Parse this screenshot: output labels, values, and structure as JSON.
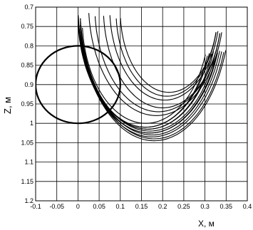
{
  "chart_data": {
    "type": "line",
    "title": "",
    "xlabel": "X, м",
    "ylabel": "Z, м",
    "xlim": [
      -0.1,
      0.4
    ],
    "ylim": [
      0.7,
      1.2
    ],
    "y_inverted": true,
    "grid": true,
    "x_ticks": [
      "-0.1",
      "-0.05",
      "0",
      "0.05",
      "0.1",
      "0.15",
      "0.2",
      "0.25",
      "0.3",
      "0.35",
      "0.4"
    ],
    "y_ticks": [
      "0.7",
      "0.75",
      "0.8",
      "0.85",
      "0.9",
      "0.95",
      "1",
      "1.05",
      "1.1",
      "1.15",
      "1.2"
    ],
    "series": [
      {
        "kind": "circle",
        "center": [
          0.0,
          0.9
        ],
        "radius_x": 0.1,
        "radius_z": 0.1,
        "color": "#000000"
      },
      {
        "kind": "trajectory-bundle",
        "color": "#000000",
        "curves": [
          {
            "center": [
              0.16,
              0.73
            ],
            "radius_x": 0.15,
            "radius_z": 0.27,
            "from_deg": 200,
            "to_deg": 355
          },
          {
            "center": [
              0.16,
              0.73
            ],
            "radius_x": 0.155,
            "radius_z": 0.28,
            "from_deg": 200,
            "to_deg": 355
          },
          {
            "center": [
              0.16,
              0.72
            ],
            "radius_x": 0.16,
            "radius_z": 0.29,
            "from_deg": 200,
            "to_deg": 355
          },
          {
            "center": [
              0.165,
              0.72
            ],
            "radius_x": 0.16,
            "radius_z": 0.295,
            "from_deg": 200,
            "to_deg": 355
          },
          {
            "center": [
              0.165,
              0.71
            ],
            "radius_x": 0.165,
            "radius_z": 0.305,
            "from_deg": 200,
            "to_deg": 355
          },
          {
            "center": [
              0.17,
              0.71
            ],
            "radius_x": 0.165,
            "radius_z": 0.31,
            "from_deg": 200,
            "to_deg": 355
          },
          {
            "center": [
              0.17,
              0.71
            ],
            "radius_x": 0.17,
            "radius_z": 0.315,
            "from_deg": 200,
            "to_deg": 355
          },
          {
            "center": [
              0.17,
              0.7
            ],
            "radius_x": 0.17,
            "radius_z": 0.325,
            "from_deg": 200,
            "to_deg": 355
          },
          {
            "center": [
              0.175,
              0.7
            ],
            "radius_x": 0.17,
            "radius_z": 0.33,
            "from_deg": 200,
            "to_deg": 355
          },
          {
            "center": [
              0.175,
              0.7
            ],
            "radius_x": 0.175,
            "radius_z": 0.335,
            "from_deg": 200,
            "to_deg": 355
          },
          {
            "center": [
              0.18,
              0.7
            ],
            "radius_x": 0.175,
            "radius_z": 0.34,
            "from_deg": 200,
            "to_deg": 355
          },
          {
            "center": [
              0.18,
              0.69
            ],
            "radius_x": 0.18,
            "radius_z": 0.355,
            "from_deg": 200,
            "to_deg": 355
          },
          {
            "center": [
              0.185,
              0.69
            ],
            "radius_x": 0.16,
            "radius_z": 0.29,
            "from_deg": 195,
            "to_deg": 355
          },
          {
            "center": [
              0.19,
              0.7
            ],
            "radius_x": 0.15,
            "radius_z": 0.27,
            "from_deg": 195,
            "to_deg": 355
          },
          {
            "center": [
              0.2,
              0.7
            ],
            "radius_x": 0.14,
            "radius_z": 0.26,
            "from_deg": 195,
            "to_deg": 355
          },
          {
            "center": [
              0.205,
              0.7
            ],
            "radius_x": 0.13,
            "radius_z": 0.24,
            "from_deg": 195,
            "to_deg": 355
          },
          {
            "center": [
              0.21,
              0.71
            ],
            "radius_x": 0.12,
            "radius_z": 0.22,
            "from_deg": 195,
            "to_deg": 355
          },
          {
            "center": [
              0.215,
              0.71
            ],
            "radius_x": 0.115,
            "radius_z": 0.21,
            "from_deg": 195,
            "to_deg": 355
          }
        ]
      }
    ]
  }
}
